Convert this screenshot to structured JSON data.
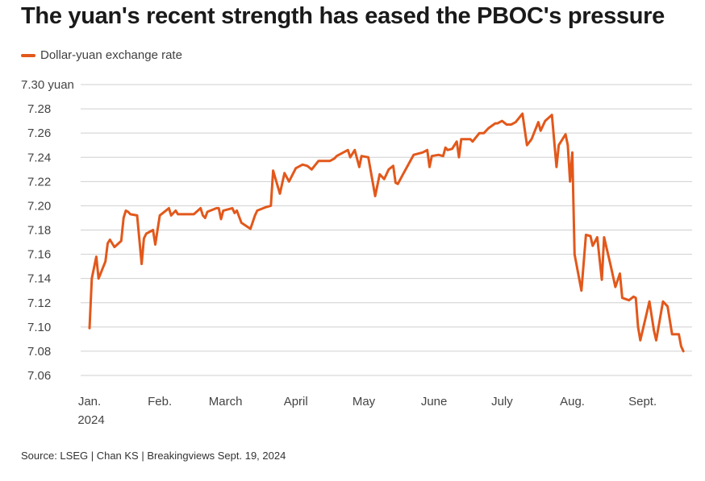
{
  "chart_data": {
    "type": "line",
    "title": "The yuan's recent strength has eased the PBOC's pressure",
    "legend": {
      "position": "top-left",
      "entries": [
        "Dollar-yuan exchange rate"
      ]
    },
    "series": [
      {
        "name": "Dollar-yuan exchange rate",
        "color": "#e2581b",
        "points": [
          [
            "2024-01-01",
            7.099
          ],
          [
            "2024-01-02",
            7.14
          ],
          [
            "2024-01-04",
            7.158
          ],
          [
            "2024-01-05",
            7.14
          ],
          [
            "2024-01-08",
            7.154
          ],
          [
            "2024-01-09",
            7.169
          ],
          [
            "2024-01-10",
            7.172
          ],
          [
            "2024-01-12",
            7.166
          ],
          [
            "2024-01-15",
            7.171
          ],
          [
            "2024-01-16",
            7.19
          ],
          [
            "2024-01-17",
            7.196
          ],
          [
            "2024-01-18",
            7.195
          ],
          [
            "2024-01-19",
            7.193
          ],
          [
            "2024-01-22",
            7.192
          ],
          [
            "2024-01-24",
            7.152
          ],
          [
            "2024-01-25",
            7.173
          ],
          [
            "2024-01-26",
            7.177
          ],
          [
            "2024-01-29",
            7.18
          ],
          [
            "2024-01-30",
            7.168
          ],
          [
            "2024-02-01",
            7.192
          ],
          [
            "2024-02-05",
            7.198
          ],
          [
            "2024-02-06",
            7.192
          ],
          [
            "2024-02-08",
            7.196
          ],
          [
            "2024-02-09",
            7.193
          ],
          [
            "2024-02-16",
            7.193
          ],
          [
            "2024-02-19",
            7.198
          ],
          [
            "2024-02-20",
            7.192
          ],
          [
            "2024-02-21",
            7.19
          ],
          [
            "2024-02-22",
            7.195
          ],
          [
            "2024-02-26",
            7.198
          ],
          [
            "2024-02-27",
            7.198
          ],
          [
            "2024-02-28",
            7.189
          ],
          [
            "2024-02-29",
            7.196
          ],
          [
            "2024-03-04",
            7.198
          ],
          [
            "2024-03-05",
            7.194
          ],
          [
            "2024-03-06",
            7.196
          ],
          [
            "2024-03-08",
            7.186
          ],
          [
            "2024-03-12",
            7.181
          ],
          [
            "2024-03-14",
            7.192
          ],
          [
            "2024-03-15",
            7.196
          ],
          [
            "2024-03-19",
            7.199
          ],
          [
            "2024-03-21",
            7.2
          ],
          [
            "2024-03-22",
            7.229
          ],
          [
            "2024-03-25",
            7.21
          ],
          [
            "2024-03-27",
            7.227
          ],
          [
            "2024-03-29",
            7.22
          ],
          [
            "2024-04-01",
            7.231
          ],
          [
            "2024-04-04",
            7.234
          ],
          [
            "2024-04-06",
            7.233
          ],
          [
            "2024-04-08",
            7.23
          ],
          [
            "2024-04-11",
            7.237
          ],
          [
            "2024-04-16",
            7.237
          ],
          [
            "2024-04-18",
            7.239
          ],
          [
            "2024-04-19",
            7.241
          ],
          [
            "2024-04-24",
            7.246
          ],
          [
            "2024-04-25",
            7.24
          ],
          [
            "2024-04-27",
            7.246
          ],
          [
            "2024-04-29",
            7.232
          ],
          [
            "2024-04-30",
            7.241
          ],
          [
            "2024-05-03",
            7.24
          ],
          [
            "2024-05-06",
            7.208
          ],
          [
            "2024-05-08",
            7.226
          ],
          [
            "2024-05-10",
            7.222
          ],
          [
            "2024-05-12",
            7.23
          ],
          [
            "2024-05-14",
            7.233
          ],
          [
            "2024-05-15",
            7.219
          ],
          [
            "2024-05-16",
            7.218
          ],
          [
            "2024-05-18",
            7.225
          ],
          [
            "2024-05-23",
            7.242
          ],
          [
            "2024-05-27",
            7.244
          ],
          [
            "2024-05-29",
            7.246
          ],
          [
            "2024-05-30",
            7.232
          ],
          [
            "2024-05-31",
            7.241
          ],
          [
            "2024-06-03",
            7.242
          ],
          [
            "2024-06-05",
            7.241
          ],
          [
            "2024-06-06",
            7.248
          ],
          [
            "2024-06-07",
            7.246
          ],
          [
            "2024-06-09",
            7.247
          ],
          [
            "2024-06-11",
            7.253
          ],
          [
            "2024-06-12",
            7.24
          ],
          [
            "2024-06-13",
            7.255
          ],
          [
            "2024-06-17",
            7.255
          ],
          [
            "2024-06-18",
            7.253
          ],
          [
            "2024-06-21",
            7.26
          ],
          [
            "2024-06-23",
            7.26
          ],
          [
            "2024-06-25",
            7.264
          ],
          [
            "2024-06-28",
            7.268
          ],
          [
            "2024-06-29",
            7.268
          ],
          [
            "2024-07-01",
            7.27
          ],
          [
            "2024-07-03",
            7.267
          ],
          [
            "2024-07-05",
            7.267
          ],
          [
            "2024-07-07",
            7.269
          ],
          [
            "2024-07-10",
            7.276
          ],
          [
            "2024-07-12",
            7.25
          ],
          [
            "2024-07-14",
            7.255
          ],
          [
            "2024-07-17",
            7.269
          ],
          [
            "2024-07-18",
            7.262
          ],
          [
            "2024-07-20",
            7.27
          ],
          [
            "2024-07-23",
            7.275
          ],
          [
            "2024-07-25",
            7.232
          ],
          [
            "2024-07-26",
            7.25
          ],
          [
            "2024-07-29",
            7.259
          ],
          [
            "2024-07-30",
            7.25
          ],
          [
            "2024-07-31",
            7.22
          ],
          [
            "2024-08-01",
            7.244
          ],
          [
            "2024-08-02",
            7.16
          ],
          [
            "2024-08-05",
            7.13
          ],
          [
            "2024-08-07",
            7.176
          ],
          [
            "2024-08-09",
            7.175
          ],
          [
            "2024-08-10",
            7.167
          ],
          [
            "2024-08-12",
            7.174
          ],
          [
            "2024-08-14",
            7.139
          ],
          [
            "2024-08-15",
            7.174
          ],
          [
            "2024-08-18",
            7.15
          ],
          [
            "2024-08-20",
            7.133
          ],
          [
            "2024-08-22",
            7.144
          ],
          [
            "2024-08-23",
            7.124
          ],
          [
            "2024-08-26",
            7.122
          ],
          [
            "2024-08-28",
            7.125
          ],
          [
            "2024-08-29",
            7.124
          ],
          [
            "2024-08-30",
            7.1
          ],
          [
            "2024-08-31",
            7.089
          ],
          [
            "2024-09-03",
            7.113
          ],
          [
            "2024-09-04",
            7.121
          ],
          [
            "2024-09-06",
            7.097
          ],
          [
            "2024-09-07",
            7.089
          ],
          [
            "2024-09-10",
            7.121
          ],
          [
            "2024-09-12",
            7.117
          ],
          [
            "2024-09-14",
            7.094
          ],
          [
            "2024-09-17",
            7.094
          ],
          [
            "2024-09-18",
            7.084
          ],
          [
            "2024-09-19",
            7.08
          ]
        ]
      }
    ],
    "ylim": [
      7.06,
      7.3
    ],
    "yticks": [
      "7.30 yuan",
      "7.28",
      "7.26",
      "7.24",
      "7.22",
      "7.20",
      "7.18",
      "7.16",
      "7.14",
      "7.12",
      "7.10",
      "7.08",
      "7.06"
    ],
    "xticks": [
      {
        "date": "2024-01-01",
        "label": "Jan.",
        "sub": "2024"
      },
      {
        "date": "2024-02-01",
        "label": "Feb."
      },
      {
        "date": "2024-03-01",
        "label": "March"
      },
      {
        "date": "2024-04-01",
        "label": "April"
      },
      {
        "date": "2024-05-01",
        "label": "May"
      },
      {
        "date": "2024-06-01",
        "label": "June"
      },
      {
        "date": "2024-07-01",
        "label": "July"
      },
      {
        "date": "2024-08-01",
        "label": "Aug."
      },
      {
        "date": "2024-09-01",
        "label": "Sept."
      }
    ],
    "grid": true
  },
  "source": "Source: LSEG | Chan KS | Breakingviews Sept. 19, 2024"
}
